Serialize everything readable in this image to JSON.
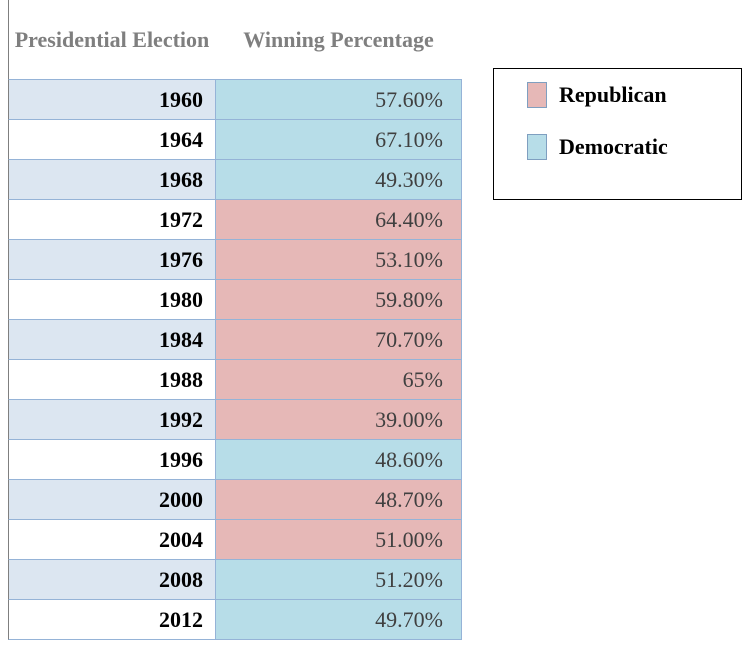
{
  "table": {
    "headers": [
      "Presidential Election",
      "Winning Percentage"
    ],
    "rows": [
      {
        "year": "1960",
        "percentage": "57.60%",
        "party": "Democratic"
      },
      {
        "year": "1964",
        "percentage": "67.10%",
        "party": "Democratic"
      },
      {
        "year": "1968",
        "percentage": "49.30%",
        "party": "Democratic"
      },
      {
        "year": "1972",
        "percentage": "64.40%",
        "party": "Republican"
      },
      {
        "year": "1976",
        "percentage": "53.10%",
        "party": "Republican"
      },
      {
        "year": "1980",
        "percentage": "59.80%",
        "party": "Republican"
      },
      {
        "year": "1984",
        "percentage": "70.70%",
        "party": "Republican"
      },
      {
        "year": "1988",
        "percentage": "65%",
        "party": "Republican"
      },
      {
        "year": "1992",
        "percentage": "39.00%",
        "party": "Republican"
      },
      {
        "year": "1996",
        "percentage": "48.60%",
        "party": "Democratic"
      },
      {
        "year": "2000",
        "percentage": "48.70%",
        "party": "Republican"
      },
      {
        "year": "2004",
        "percentage": "51.00%",
        "party": "Republican"
      },
      {
        "year": "2008",
        "percentage": "51.20%",
        "party": "Democratic"
      },
      {
        "year": "2012",
        "percentage": "49.70%",
        "party": "Democratic"
      }
    ],
    "stripe_color": "#dce6f1"
  },
  "legend": [
    {
      "label": "Republican",
      "color": "#e6b8b7"
    },
    {
      "label": "Democratic",
      "color": "#b7dde8"
    }
  ]
}
